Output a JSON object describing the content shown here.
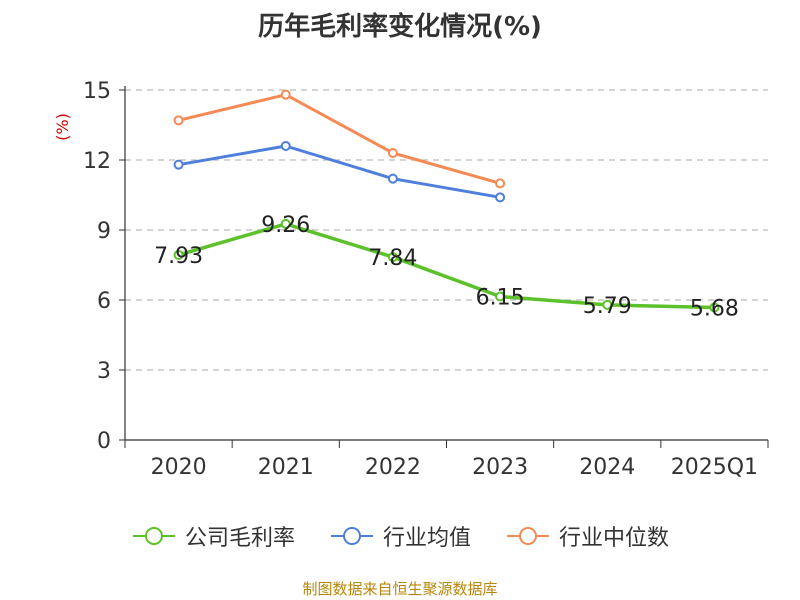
{
  "title": "历年毛利率变化情况(%)",
  "source": "制图数据来自恒生聚源数据库",
  "chart_data": {
    "type": "line",
    "title": "历年毛利率变化情况(%)",
    "ylabel": "(%)",
    "xlabel": "",
    "ylim": [
      0,
      15
    ],
    "yticks": [
      "0",
      "3",
      "6",
      "9",
      "12",
      "15"
    ],
    "categories": [
      "2020",
      "2021",
      "2022",
      "2023",
      "2024",
      "2025Q1"
    ],
    "grid": true,
    "legend_position": "bottom",
    "series": [
      {
        "name": "公司毛利率",
        "color": "#5cc12b",
        "values": [
          7.93,
          9.26,
          7.84,
          6.15,
          5.79,
          5.68
        ],
        "labels": [
          "7.93",
          "9.26",
          "7.84",
          "6.15",
          "5.79",
          "5.68"
        ]
      },
      {
        "name": "行业均值",
        "color": "#4f7fdc",
        "values": [
          11.8,
          12.6,
          11.2,
          10.4,
          null,
          null
        ]
      },
      {
        "name": "行业中位数",
        "color": "#f58a54",
        "values": [
          13.7,
          14.8,
          12.3,
          11.0,
          null,
          null
        ]
      }
    ]
  }
}
